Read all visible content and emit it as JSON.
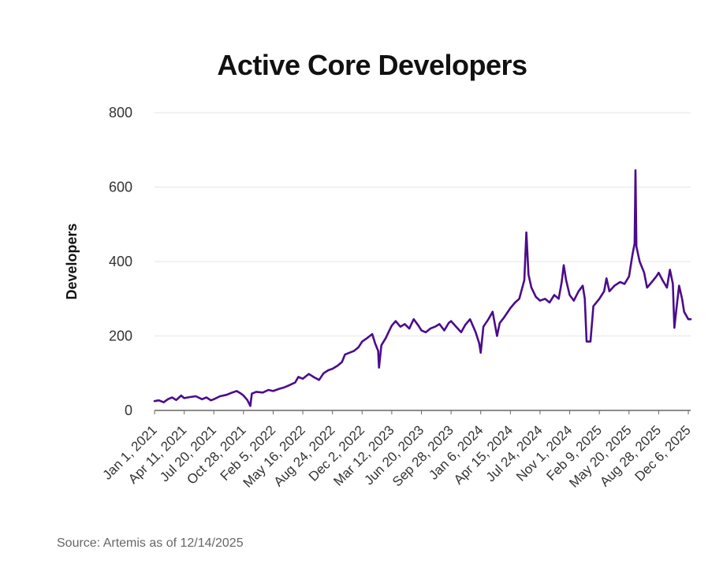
{
  "chart_data": {
    "type": "line",
    "title": "Active Core Developers",
    "xlabel": "",
    "ylabel": "Developers",
    "ylim": [
      0,
      800
    ],
    "yticks": [
      0,
      200,
      400,
      600,
      800
    ],
    "xlim": [
      "Jan 1, 2021",
      "Dec 14, 2025"
    ],
    "xtick_labels": [
      "Jan 1, 2021",
      "Apr 11, 2021",
      "Jul 20, 2021",
      "Oct 28, 2021",
      "Feb 5, 2022",
      "May 16, 2022",
      "Aug 24, 2022",
      "Dec 2, 2022",
      "Mar 12, 2023",
      "Jun 20, 2023",
      "Sep 28, 2023",
      "Jan 6, 2024",
      "Apr 15, 2024",
      "Jul 24, 2024",
      "Nov 1, 2024",
      "Feb 9, 2025",
      "May 20, 2025",
      "Aug 28, 2025",
      "Dec 6, 2025"
    ],
    "grid": true,
    "series": [
      {
        "name": "Active Core Developers",
        "color": "#4B0C8C",
        "points": [
          [
            "Jan 1, 2021",
            25
          ],
          [
            "Jan 15, 2021",
            27
          ],
          [
            "Feb 1, 2021",
            22
          ],
          [
            "Feb 15, 2021",
            30
          ],
          [
            "Mar 1, 2021",
            35
          ],
          [
            "Mar 15, 2021",
            28
          ],
          [
            "Apr 1, 2021",
            40
          ],
          [
            "Apr 11, 2021",
            33
          ],
          [
            "May 1, 2021",
            36
          ],
          [
            "May 20, 2021",
            38
          ],
          [
            "Jun 10, 2021",
            30
          ],
          [
            "Jun 25, 2021",
            35
          ],
          [
            "Jul 10, 2021",
            27
          ],
          [
            "Jul 20, 2021",
            30
          ],
          [
            "Aug 10, 2021",
            38
          ],
          [
            "Sep 1, 2021",
            42
          ],
          [
            "Sep 20, 2021",
            48
          ],
          [
            "Oct 5, 2021",
            52
          ],
          [
            "Oct 20, 2021",
            45
          ],
          [
            "Oct 28, 2021",
            40
          ],
          [
            "Nov 10, 2021",
            28
          ],
          [
            "Nov 20, 2021",
            12
          ],
          [
            "Nov 25, 2021",
            45
          ],
          [
            "Dec 10, 2021",
            50
          ],
          [
            "Jan 1, 2022",
            48
          ],
          [
            "Jan 20, 2022",
            55
          ],
          [
            "Feb 5, 2022",
            52
          ],
          [
            "Feb 25, 2022",
            58
          ],
          [
            "Mar 15, 2022",
            62
          ],
          [
            "Apr 1, 2022",
            68
          ],
          [
            "Apr 20, 2022",
            75
          ],
          [
            "May 1, 2022",
            90
          ],
          [
            "May 16, 2022",
            85
          ],
          [
            "Jun 5, 2022",
            98
          ],
          [
            "Jun 25, 2022",
            88
          ],
          [
            "Jul 10, 2022",
            82
          ],
          [
            "Jul 25, 2022",
            100
          ],
          [
            "Aug 10, 2022",
            108
          ],
          [
            "Aug 24, 2022",
            112
          ],
          [
            "Sep 10, 2022",
            120
          ],
          [
            "Sep 25, 2022",
            130
          ],
          [
            "Oct 5, 2022",
            150
          ],
          [
            "Oct 20, 2022",
            155
          ],
          [
            "Nov 5, 2022",
            160
          ],
          [
            "Nov 20, 2022",
            170
          ],
          [
            "Dec 2, 2022",
            185
          ],
          [
            "Dec 20, 2022",
            195
          ],
          [
            "Jan 5, 2023",
            205
          ],
          [
            "Jan 15, 2023",
            180
          ],
          [
            "Jan 25, 2023",
            160
          ],
          [
            "Jan 28, 2023",
            115
          ],
          [
            "Feb 5, 2023",
            175
          ],
          [
            "Feb 20, 2023",
            195
          ],
          [
            "Mar 1, 2023",
            210
          ],
          [
            "Mar 12, 2023",
            228
          ],
          [
            "Mar 25, 2023",
            240
          ],
          [
            "Apr 10, 2023",
            225
          ],
          [
            "Apr 25, 2023",
            232
          ],
          [
            "May 10, 2023",
            220
          ],
          [
            "May 25, 2023",
            245
          ],
          [
            "Jun 10, 2023",
            228
          ],
          [
            "Jun 20, 2023",
            215
          ],
          [
            "Jul 5, 2023",
            210
          ],
          [
            "Jul 20, 2023",
            220
          ],
          [
            "Aug 5, 2023",
            225
          ],
          [
            "Aug 20, 2023",
            232
          ],
          [
            "Sep 5, 2023",
            215
          ],
          [
            "Sep 20, 2023",
            235
          ],
          [
            "Sep 28, 2023",
            240
          ],
          [
            "Oct 15, 2023",
            225
          ],
          [
            "Nov 1, 2023",
            210
          ],
          [
            "Nov 15, 2023",
            230
          ],
          [
            "Dec 1, 2023",
            245
          ],
          [
            "Dec 20, 2023",
            210
          ],
          [
            "Jan 1, 2024",
            180
          ],
          [
            "Jan 6, 2024",
            155
          ],
          [
            "Jan 15, 2024",
            225
          ],
          [
            "Feb 1, 2024",
            245
          ],
          [
            "Feb 15, 2024",
            265
          ],
          [
            "Mar 1, 2024",
            200
          ],
          [
            "Mar 10, 2024",
            235
          ],
          [
            "Mar 25, 2024",
            250
          ],
          [
            "Apr 15, 2024",
            275
          ],
          [
            "May 1, 2024",
            290
          ],
          [
            "May 15, 2024",
            300
          ],
          [
            "Jun 1, 2024",
            350
          ],
          [
            "Jun 8, 2024",
            478
          ],
          [
            "Jun 15, 2024",
            365
          ],
          [
            "Jun 25, 2024",
            330
          ],
          [
            "Jul 10, 2024",
            305
          ],
          [
            "Jul 24, 2024",
            295
          ],
          [
            "Aug 10, 2024",
            300
          ],
          [
            "Aug 25, 2024",
            290
          ],
          [
            "Sep 10, 2024",
            310
          ],
          [
            "Sep 25, 2024",
            300
          ],
          [
            "Oct 5, 2024",
            345
          ],
          [
            "Oct 12, 2024",
            390
          ],
          [
            "Oct 20, 2024",
            350
          ],
          [
            "Nov 1, 2024",
            310
          ],
          [
            "Nov 15, 2024",
            295
          ],
          [
            "Dec 1, 2024",
            320
          ],
          [
            "Dec 15, 2024",
            335
          ],
          [
            "Dec 22, 2024",
            300
          ],
          [
            "Dec 28, 2024",
            185
          ],
          [
            "Jan 10, 2025",
            185
          ],
          [
            "Jan 20, 2025",
            280
          ],
          [
            "Feb 9, 2025",
            300
          ],
          [
            "Feb 25, 2025",
            320
          ],
          [
            "Mar 5, 2025",
            355
          ],
          [
            "Mar 15, 2025",
            320
          ],
          [
            "Apr 1, 2025",
            335
          ],
          [
            "Apr 20, 2025",
            345
          ],
          [
            "May 5, 2025",
            340
          ],
          [
            "May 20, 2025",
            360
          ],
          [
            "Jun 1, 2025",
            420
          ],
          [
            "Jun 8, 2025",
            448
          ],
          [
            "Jun 11, 2025",
            645
          ],
          [
            "Jun 14, 2025",
            440
          ],
          [
            "Jun 25, 2025",
            400
          ],
          [
            "Jul 10, 2025",
            370
          ],
          [
            "Jul 20, 2025",
            330
          ],
          [
            "Aug 5, 2025",
            345
          ],
          [
            "Aug 20, 2025",
            360
          ],
          [
            "Aug 28, 2025",
            370
          ],
          [
            "Sep 10, 2025",
            350
          ],
          [
            "Sep 25, 2025",
            330
          ],
          [
            "Oct 5, 2025",
            378
          ],
          [
            "Oct 15, 2025",
            340
          ],
          [
            "Oct 20, 2025",
            222
          ],
          [
            "Oct 28, 2025",
            280
          ],
          [
            "Nov 5, 2025",
            335
          ],
          [
            "Nov 15, 2025",
            300
          ],
          [
            "Nov 22, 2025",
            265
          ],
          [
            "Dec 6, 2025",
            245
          ],
          [
            "Dec 14, 2025",
            245
          ]
        ]
      }
    ]
  },
  "footer": {
    "source": "Source: Artemis as of 12/14/2025"
  },
  "colors": {
    "line": "#4B0C8C",
    "grid": "#e6e6e6",
    "axis": "#666666"
  }
}
